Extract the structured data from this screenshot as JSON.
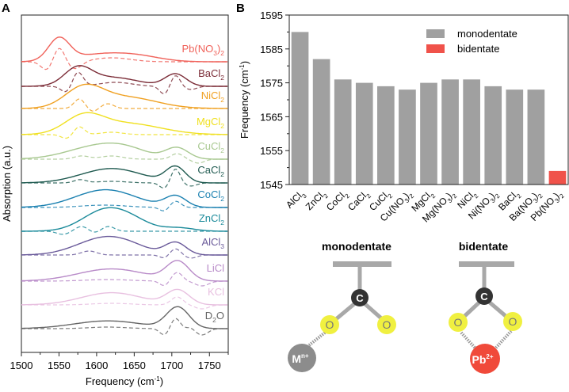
{
  "panel_labels": [
    "A",
    "B"
  ],
  "chart_data": [
    {
      "type": "line",
      "title": "",
      "xlabel": "Frequency (cm-1)",
      "xlabel_main": "Frequency (cm",
      "xlabel_sup": "-1",
      "xlabel_end": ")",
      "ylabel": "Absorption (a.u.)",
      "xlim": [
        1500,
        1775
      ],
      "xticks": [
        1500,
        1550,
        1600,
        1650,
        1700,
        1750
      ],
      "note": "solid = spectrum, dashed = second derivative",
      "series": [
        {
          "name": "Pb(NO3)2",
          "label": "Pb(NO",
          "sub": "3",
          "tail": ")",
          "sub2": "2",
          "color": "#f0625a",
          "solid": [
            [
              1550,
              1.0,
              14
            ],
            [
              1610,
              0.35,
              40
            ],
            [
              1660,
              0.15,
              30
            ]
          ],
          "dashed": [
            [
              1550,
              1.0,
              8
            ],
            [
              1535,
              -0.6,
              8
            ],
            [
              1570,
              -0.5,
              10
            ],
            [
              1620,
              0.25,
              25
            ]
          ]
        },
        {
          "name": "BaCl2",
          "label": "BaCl",
          "sub": "2",
          "color": "#7a2a35",
          "solid": [
            [
              1575,
              0.75,
              18
            ],
            [
              1620,
              0.4,
              35
            ],
            [
              1705,
              0.55,
              14
            ]
          ],
          "dashed": [
            [
              1575,
              0.9,
              7
            ],
            [
              1560,
              -0.4,
              7
            ],
            [
              1625,
              0.25,
              22
            ],
            [
              1690,
              -0.5,
              6
            ],
            [
              1705,
              0.7,
              6
            ],
            [
              1725,
              -0.2,
              8
            ]
          ]
        },
        {
          "name": "NiCl2",
          "label": "NiCl",
          "sub": "2",
          "color": "#f0a020",
          "solid": [
            [
              1583,
              0.9,
              25
            ],
            [
              1640,
              0.5,
              40
            ]
          ],
          "dashed": [
            [
              1577,
              0.6,
              7
            ],
            [
              1615,
              0.3,
              8
            ],
            [
              1595,
              -0.2,
              6
            ]
          ]
        },
        {
          "name": "MgCl2",
          "label": "MgCl",
          "sub": "2",
          "color": "#f0e020",
          "solid": [
            [
              1583,
              0.75,
              25
            ],
            [
              1640,
              0.5,
              45
            ]
          ],
          "dashed": [
            [
              1577,
              0.5,
              7
            ],
            [
              1560,
              -0.25,
              7
            ],
            [
              1620,
              0.15,
              15
            ]
          ]
        },
        {
          "name": "CuCl2",
          "label": "CuCl",
          "sub": "2",
          "color": "#a8c890",
          "solid": [
            [
              1600,
              0.55,
              40
            ],
            [
              1640,
              0.3,
              30
            ],
            [
              1707,
              0.5,
              15
            ]
          ],
          "dashed": [
            [
              1580,
              0.2,
              10
            ],
            [
              1620,
              0.2,
              15
            ],
            [
              1707,
              0.35,
              8
            ],
            [
              1735,
              -0.25,
              8
            ]
          ]
        },
        {
          "name": "CaCl2",
          "label": "CaCl",
          "sub": "2",
          "color": "#1f5a50",
          "solid": [
            [
              1620,
              0.65,
              40
            ],
            [
              1705,
              0.7,
              13
            ]
          ],
          "dashed": [
            [
              1578,
              0.2,
              8
            ],
            [
              1620,
              0.1,
              20
            ],
            [
              1690,
              -0.35,
              6
            ],
            [
              1705,
              0.9,
              6
            ],
            [
              1725,
              -0.2,
              8
            ]
          ]
        },
        {
          "name": "CoCl2",
          "label": "CoCl",
          "sub": "2",
          "color": "#1a80b0",
          "solid": [
            [
              1612,
              0.8,
              40
            ],
            [
              1705,
              0.5,
              14
            ]
          ],
          "dashed": [
            [
              1610,
              0.15,
              30
            ],
            [
              1690,
              -0.25,
              6
            ],
            [
              1705,
              0.4,
              7
            ]
          ]
        },
        {
          "name": "ZnCl2",
          "label": "ZnCl",
          "sub": "2",
          "color": "#1a8a9a",
          "solid": [
            [
              1612,
              0.95,
              30
            ],
            [
              1650,
              0.3,
              25
            ],
            [
              1710,
              0.15,
              20
            ]
          ],
          "dashed": [
            [
              1580,
              0.3,
              8
            ],
            [
              1555,
              -0.2,
              8
            ],
            [
              1616,
              0.3,
              8
            ],
            [
              1597,
              -0.1,
              6
            ]
          ]
        },
        {
          "name": "AlCl3",
          "label": "AlCl",
          "sub": "3",
          "color": "#6a5a9a",
          "solid": [
            [
              1605,
              0.65,
              35
            ],
            [
              1640,
              0.3,
              30
            ],
            [
              1705,
              0.55,
              14
            ]
          ],
          "dashed": [
            [
              1590,
              0.25,
              10
            ],
            [
              1690,
              -0.2,
              6
            ],
            [
              1705,
              0.4,
              7
            ],
            [
              1725,
              -0.2,
              8
            ]
          ]
        },
        {
          "name": "LiCl",
          "label": "LiCl",
          "sub": "",
          "color": "#b88ac8",
          "solid": [
            [
              1620,
              0.55,
              45
            ],
            [
              1708,
              0.85,
              15
            ]
          ],
          "dashed": [
            [
              1615,
              0.1,
              30
            ],
            [
              1690,
              -0.3,
              6
            ],
            [
              1707,
              0.55,
              7
            ],
            [
              1740,
              -0.3,
              9
            ]
          ]
        },
        {
          "name": "KCl",
          "label": "KCl",
          "sub": "",
          "color": "#e8c0e0",
          "solid": [
            [
              1620,
              0.55,
              40
            ],
            [
              1708,
              0.65,
              15
            ]
          ],
          "dashed": [
            [
              1620,
              0.1,
              25
            ],
            [
              1707,
              0.5,
              8
            ],
            [
              1740,
              -0.25,
              9
            ]
          ]
        },
        {
          "name": "D2O",
          "label": "D",
          "sub": "2",
          "tail": "O",
          "color": "#666666",
          "solid": [
            [
              1615,
              0.35,
              45
            ],
            [
              1708,
              0.95,
              15
            ]
          ],
          "dashed": [
            [
              1615,
              0.1,
              25
            ],
            [
              1690,
              -0.4,
              6
            ],
            [
              1705,
              0.65,
              6
            ],
            [
              1740,
              -0.4,
              8
            ],
            [
              1725,
              0.1,
              5
            ]
          ]
        }
      ]
    },
    {
      "type": "bar",
      "title": "",
      "xlabel": "",
      "ylabel": "Frequency (cm-1)",
      "ylabel_main": "Frequency (cm",
      "ylabel_sup": "-1",
      "ylabel_end": ")",
      "ylim": [
        1545,
        1595
      ],
      "yticks": [
        1545,
        1555,
        1565,
        1575,
        1585,
        1595
      ],
      "legend": [
        {
          "label": "monodentate",
          "color": "#a0a0a0"
        },
        {
          "label": "bidentate",
          "color": "#f0524a"
        }
      ],
      "legend_position": "top-right",
      "categories": [
        {
          "main": "AlCl",
          "sub": "3"
        },
        {
          "main": "ZnCl",
          "sub": "2"
        },
        {
          "main": "CoCl",
          "sub": "2"
        },
        {
          "main": "CaCl",
          "sub": "2"
        },
        {
          "main": "CuCl",
          "sub": "2"
        },
        {
          "main": "Cu(NO",
          "sub": "3",
          "tail": ")",
          "sub2": "2"
        },
        {
          "main": "MgCl",
          "sub": "2"
        },
        {
          "main": "Mg(NO",
          "sub": "3",
          "tail": ")",
          "sub2": "2"
        },
        {
          "main": "NiCl",
          "sub": "2"
        },
        {
          "main": "Ni(NO",
          "sub": "3",
          "tail": ")",
          "sub2": "2"
        },
        {
          "main": "BaCl",
          "sub": "2"
        },
        {
          "main": "Ba(NO",
          "sub": "3",
          "tail": ")",
          "sub2": "2"
        },
        {
          "main": "Pb(NO",
          "sub": "3",
          "tail": ")",
          "sub2": "2"
        }
      ],
      "values": [
        1590,
        1582,
        1576,
        1575,
        1574,
        1573,
        1575,
        1576,
        1576,
        1574,
        1573,
        1573,
        1549
      ],
      "groups": [
        "monodentate",
        "monodentate",
        "monodentate",
        "monodentate",
        "monodentate",
        "monodentate",
        "monodentate",
        "monodentate",
        "monodentate",
        "monodentate",
        "monodentate",
        "monodentate",
        "bidentate"
      ]
    }
  ],
  "diagram": {
    "monodentate": {
      "title": "monodentate",
      "carbon": "C",
      "oxygen": "O",
      "metal": "M",
      "metal_sup": "n+"
    },
    "bidentate": {
      "title": "bidentate",
      "carbon": "C",
      "oxygen": "O",
      "metal": "Pb",
      "metal_sup": "2+"
    },
    "colors": {
      "bar": "#a8a8a8",
      "carbon": "#333333",
      "oxygen": "#f0f040",
      "metal_mono": "#8c8c8c",
      "metal_bi": "#f04a3a"
    }
  }
}
